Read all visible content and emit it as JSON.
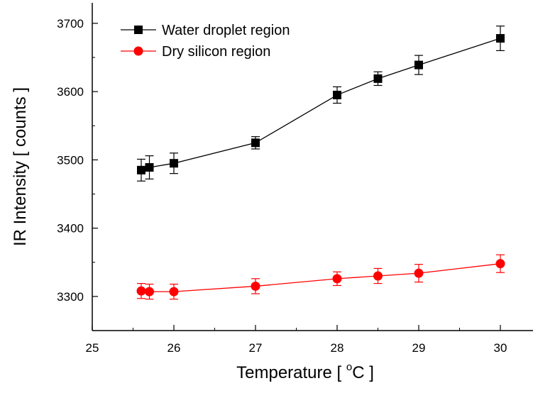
{
  "chart_data": {
    "type": "line",
    "xlabel": "Temperature [ °C ]",
    "xlabel_parts": {
      "before": "Temperature [ ",
      "sup": "o",
      "after": "C ]"
    },
    "ylabel": "IR Intensity [ counts ]",
    "xlim": [
      25,
      30.4
    ],
    "ylim": [
      3250,
      3730
    ],
    "xticks": [
      25,
      26,
      27,
      28,
      29,
      30
    ],
    "yticks": [
      3300,
      3400,
      3500,
      3600,
      3700
    ],
    "legend_position": "top-left",
    "grid": false,
    "series": [
      {
        "name": "Water droplet region",
        "color": "#000000",
        "marker": "square",
        "x": [
          25.6,
          25.7,
          26,
          27,
          28,
          28.5,
          29,
          30
        ],
        "y": [
          3485,
          3489,
          3495,
          3525,
          3595,
          3619,
          3639,
          3678
        ],
        "yerr": [
          16,
          17,
          15,
          9,
          12,
          10,
          14,
          18
        ]
      },
      {
        "name": "Dry silicon region",
        "color": "#ff0000",
        "marker": "circle",
        "x": [
          25.6,
          25.7,
          26,
          27,
          28,
          28.5,
          29,
          30
        ],
        "y": [
          3308,
          3307,
          3307,
          3315,
          3326,
          3330,
          3334,
          3348
        ],
        "yerr": [
          11,
          11,
          11,
          11,
          10,
          11,
          13,
          13
        ]
      }
    ]
  }
}
